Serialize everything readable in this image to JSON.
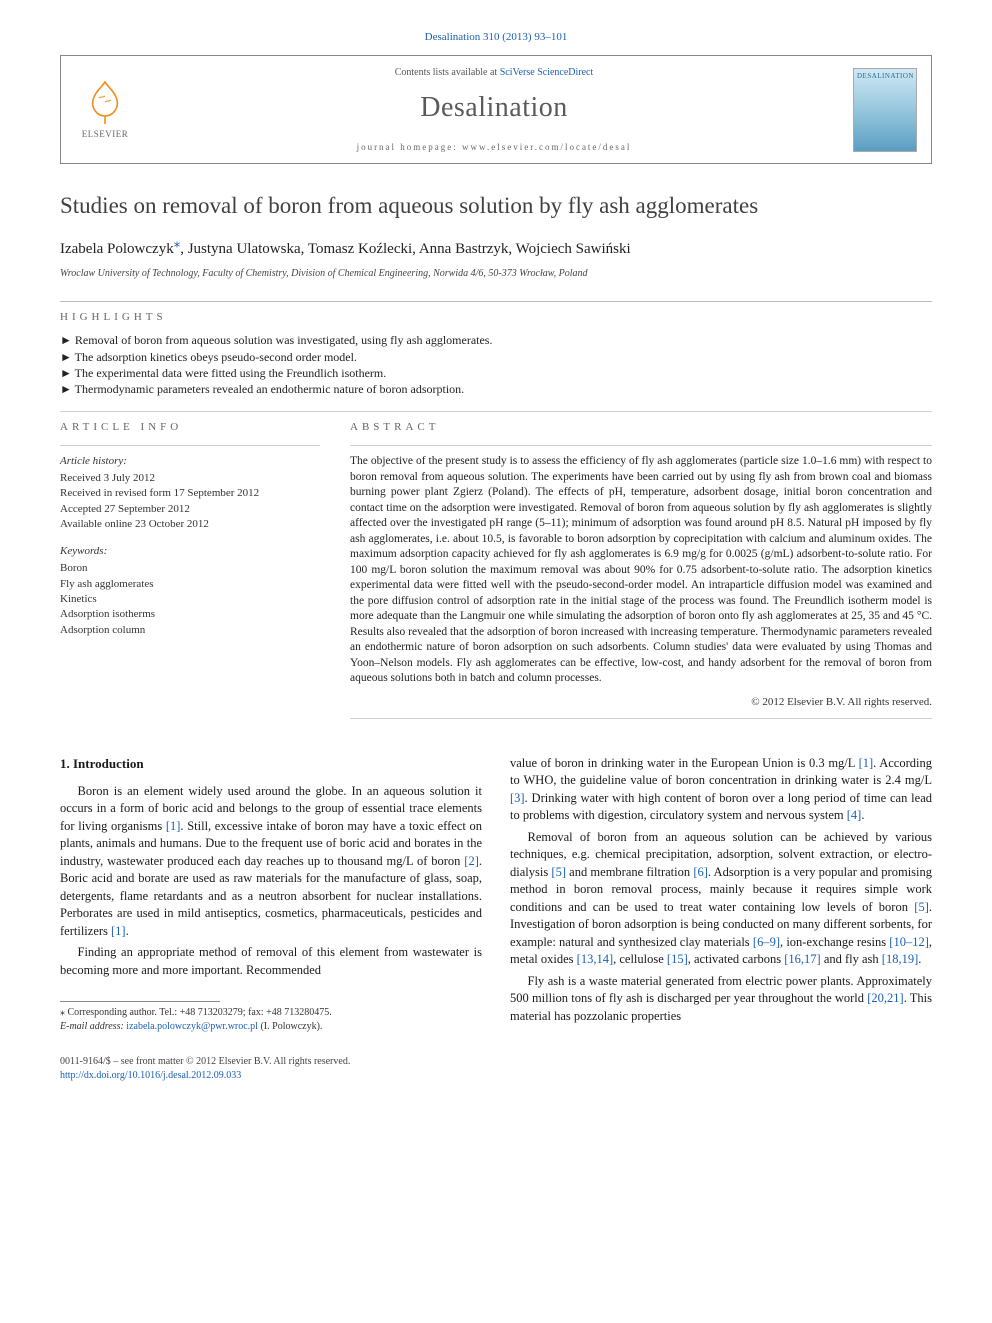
{
  "journal_ref": {
    "text": "Desalination 310 (2013) 93–101",
    "link_color": "#1a5fb4"
  },
  "header": {
    "contents_prefix": "Contents lists available at ",
    "contents_link": "SciVerse ScienceDirect",
    "journal_title": "Desalination",
    "homepage_prefix": "journal homepage: ",
    "homepage_url": "www.elsevier.com/locate/desal",
    "publisher_name": "ELSEVIER",
    "cover_label": "DESALINATION"
  },
  "article": {
    "title": "Studies on removal of boron from aqueous solution by fly ash agglomerates",
    "authors_html": "Izabela Polowczyk",
    "authors_rest": ", Justyna Ulatowska, Tomasz Koźlecki, Anna Bastrzyk, Wojciech Sawiński",
    "corr_symbol": "⁎",
    "affiliation": "Wroclaw University of Technology, Faculty of Chemistry, Division of Chemical Engineering, Norwida 4/6, 50-373 Wrocław, Poland"
  },
  "highlights": {
    "heading": "HIGHLIGHTS",
    "items": [
      "Removal of boron from aqueous solution was investigated, using fly ash agglomerates.",
      "The adsorption kinetics obeys pseudo-second order model.",
      "The experimental data were fitted using the Freundlich isotherm.",
      "Thermodynamic parameters revealed an endothermic nature of boron adsorption."
    ]
  },
  "article_info": {
    "heading": "ARTICLE INFO",
    "history_heading": "Article history:",
    "history": [
      "Received 3 July 2012",
      "Received in revised form 17 September 2012",
      "Accepted 27 September 2012",
      "Available online 23 October 2012"
    ],
    "keywords_heading": "Keywords:",
    "keywords": [
      "Boron",
      "Fly ash agglomerates",
      "Kinetics",
      "Adsorption isotherms",
      "Adsorption column"
    ]
  },
  "abstract": {
    "heading": "ABSTRACT",
    "text": "The objective of the present study is to assess the efficiency of fly ash agglomerates (particle size 1.0–1.6 mm) with respect to boron removal from aqueous solution. The experiments have been carried out by using fly ash from brown coal and biomass burning power plant Zgierz (Poland). The effects of pH, temperature, adsorbent dosage, initial boron concentration and contact time on the adsorption were investigated. Removal of boron from aqueous solution by fly ash agglomerates is slightly affected over the investigated pH range (5–11); minimum of adsorption was found around pH 8.5. Natural pH imposed by fly ash agglomerates, i.e. about 10.5, is favorable to boron adsorption by coprecipitation with calcium and aluminum oxides. The maximum adsorption capacity achieved for fly ash agglomerates is 6.9 mg/g for 0.0025 (g/mL) adsorbent-to-solute ratio. For 100 mg/L boron solution the maximum removal was about 90% for 0.75 adsorbent-to-solute ratio. The adsorption kinetics experimental data were fitted well with the pseudo-second-order model. An intraparticle diffusion model was examined and the pore diffusion control of adsorption rate in the initial stage of the process was found. The Freundlich isotherm model is more adequate than the Langmuir one while simulating the adsorption of boron onto fly ash agglomerates at 25, 35 and 45 °C. Results also revealed that the adsorption of boron increased with increasing temperature. Thermodynamic parameters revealed an endothermic nature of boron adsorption on such adsorbents. Column studies' data were evaluated by using Thomas and Yoon–Nelson models. Fly ash agglomerates can be effective, low-cost, and handy adsorbent for the removal of boron from aqueous solutions both in batch and column processes.",
    "copyright": "© 2012 Elsevier B.V. All rights reserved."
  },
  "body": {
    "intro_heading": "1. Introduction",
    "paragraphs": [
      "Boron is an element widely used around the globe. In an aqueous solution it occurs in a form of boric acid and belongs to the group of essential trace elements for living organisms [1]. Still, excessive intake of boron may have a toxic effect on plants, animals and humans. Due to the frequent use of boric acid and borates in the industry, wastewater produced each day reaches up to thousand mg/L of boron [2]. Boric acid and borate are used as raw materials for the manufacture of glass, soap, detergents, flame retardants and as a neutron absorbent for nuclear installations. Perborates are used in mild antiseptics, cosmetics, pharmaceuticals, pesticides and fertilizers [1].",
      "Finding an appropriate method of removal of this element from wastewater is becoming more and more important. Recommended",
      "value of boron in drinking water in the European Union is 0.3 mg/L [1]. According to WHO, the guideline value of boron concentration in drinking water is 2.4 mg/L [3]. Drinking water with high content of boron over a long period of time can lead to problems with digestion, circulatory system and nervous system [4].",
      "Removal of boron from an aqueous solution can be achieved by various techniques, e.g. chemical precipitation, adsorption, solvent extraction, or electro-dialysis [5] and membrane filtration [6]. Adsorption is a very popular and promising method in boron removal process, mainly because it requires simple work conditions and can be used to treat water containing low levels of boron [5]. Investigation of boron adsorption is being conducted on many different sorbents, for example: natural and synthesized clay materials [6–9], ion-exchange resins [10–12], metal oxides [13,14], cellulose [15], activated carbons [16,17] and fly ash [18,19].",
      "Fly ash is a waste material generated from electric power plants. Approximately 500 million tons of fly ash is discharged per year throughout the world [20,21]. This material has pozzolanic properties"
    ]
  },
  "footnote": {
    "corr_symbol": "⁎",
    "corr_text": " Corresponding author. Tel.: +48 713203279; fax: +48 713280475.",
    "email_label": "E-mail address:",
    "email": "izabela.polowczyk@pwr.wroc.pl",
    "email_owner": " (I. Polowczyk)."
  },
  "bottom": {
    "issn_line": "0011-9164/$ – see front matter © 2012 Elsevier B.V. All rights reserved.",
    "doi_url": "http://dx.doi.org/10.1016/j.desal.2012.09.033"
  },
  "colors": {
    "link": "#1a5fb4",
    "text": "#1a1a1a",
    "muted": "#666666",
    "rule": "#bbbbbb"
  }
}
